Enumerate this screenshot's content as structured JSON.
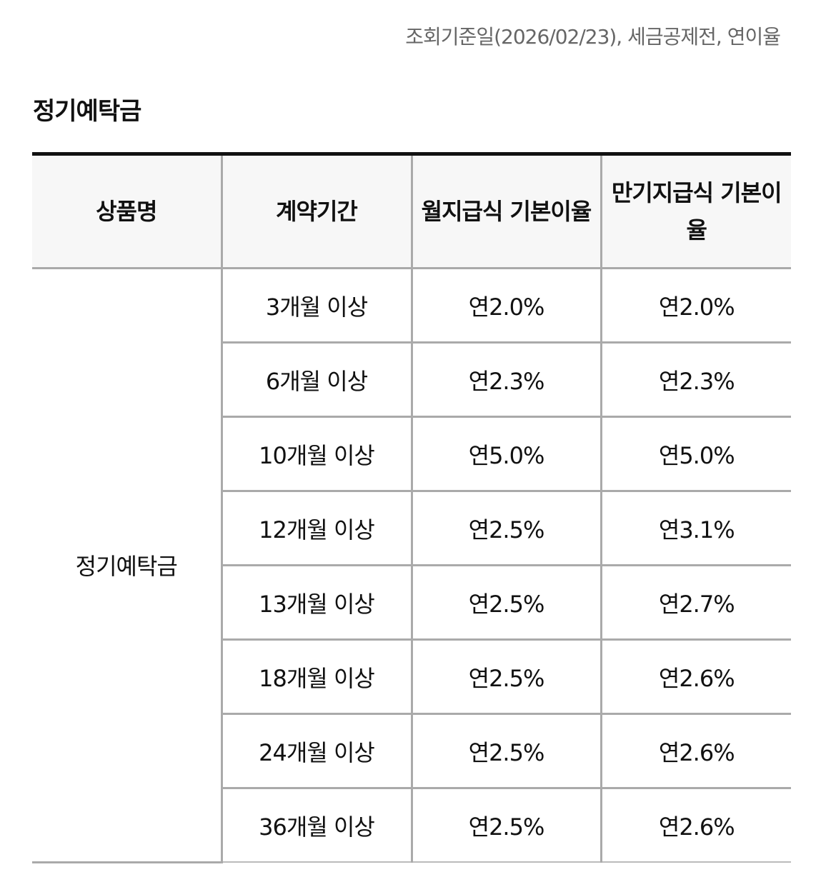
{
  "notice": "조회기준일(2026/02/23), 세금공제전, 연이율",
  "section_title": "정기예탁금",
  "table": {
    "headers": [
      "상품명",
      "계약기간",
      "월지급식 기본이율",
      "만기지급식 기본이율"
    ],
    "product_name": "정기예탁금",
    "rows": [
      {
        "period": "3개월 이상",
        "monthly": "연2.0%",
        "maturity": "연2.0%"
      },
      {
        "period": "6개월 이상",
        "monthly": "연2.3%",
        "maturity": "연2.3%"
      },
      {
        "period": "10개월 이상",
        "monthly": "연5.0%",
        "maturity": "연5.0%"
      },
      {
        "period": "12개월 이상",
        "monthly": "연2.5%",
        "maturity": "연3.1%"
      },
      {
        "period": "13개월 이상",
        "monthly": "연2.5%",
        "maturity": "연2.7%"
      },
      {
        "period": "18개월 이상",
        "monthly": "연2.5%",
        "maturity": "연2.6%"
      },
      {
        "period": "24개월 이상",
        "monthly": "연2.5%",
        "maturity": "연2.6%"
      },
      {
        "period": "36개월 이상",
        "monthly": "연2.5%",
        "maturity": "연2.6%"
      }
    ]
  }
}
